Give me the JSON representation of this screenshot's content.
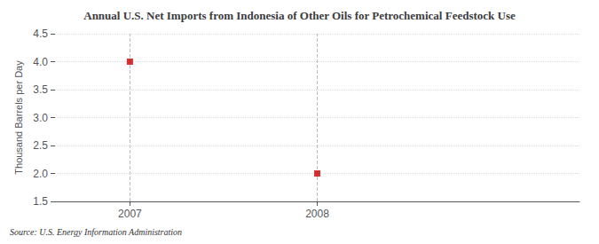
{
  "chart_data": {
    "type": "scatter",
    "title": "Annual U.S. Net Imports from Indonesia of Other Oils for Petrochemical Feedstock Use",
    "ylabel": "Thousand Barrels per Day",
    "source": "Source: U.S. Energy Information Administration",
    "x": [
      2007,
      2008
    ],
    "values": [
      4.0,
      2.0
    ],
    "color": "#cc0000",
    "marker": "square",
    "xlim": [
      2006.6,
      2009.4
    ],
    "xticks": [
      2007,
      2008
    ],
    "ylim": [
      1.5,
      4.5
    ],
    "yticks": [
      1.5,
      {
        "value": 2.0,
        "label": "2.0"
      },
      2.5,
      {
        "value": 3.0,
        "label": "3.0"
      },
      3.5,
      {
        "value": 4.0,
        "label": "4.0"
      },
      4.5
    ],
    "grid": true
  }
}
